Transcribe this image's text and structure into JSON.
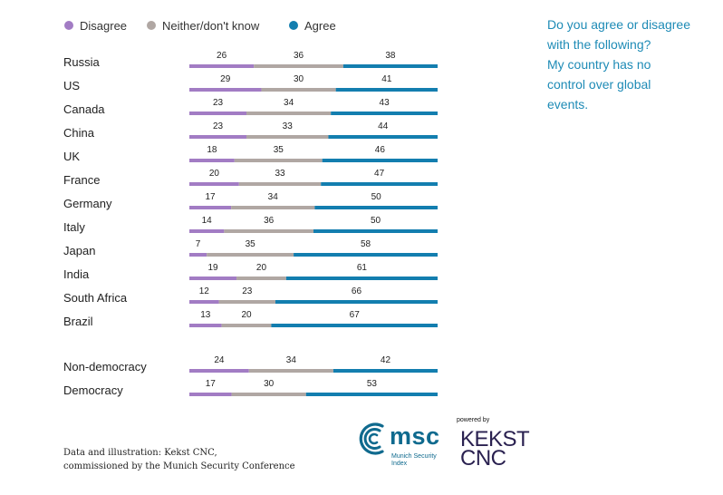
{
  "legend": [
    {
      "label": "Disagree",
      "color": "#A27CC4"
    },
    {
      "label": "Neither/don't know",
      "color": "#B0A7A3"
    },
    {
      "label": "Agree",
      "color": "#137EAF"
    }
  ],
  "question": [
    "Do you agree or disagree",
    "with the following?",
    "My country has no",
    "control over global",
    "events."
  ],
  "chart_data": {
    "type": "bar",
    "orientation": "horizontal",
    "stacked": true,
    "unit": "percent",
    "series_names": [
      "Disagree",
      "Neither/don't know",
      "Agree"
    ],
    "groups": [
      {
        "categories": [
          "Russia",
          "US",
          "Canada",
          "China",
          "UK",
          "France",
          "Germany",
          "Italy",
          "Japan",
          "India",
          "South Africa",
          "Brazil"
        ],
        "values": [
          [
            26,
            36,
            38
          ],
          [
            29,
            30,
            41
          ],
          [
            23,
            34,
            43
          ],
          [
            23,
            33,
            44
          ],
          [
            18,
            35,
            46
          ],
          [
            20,
            33,
            47
          ],
          [
            17,
            34,
            50
          ],
          [
            14,
            36,
            50
          ],
          [
            7,
            35,
            58
          ],
          [
            19,
            20,
            61
          ],
          [
            12,
            23,
            66
          ],
          [
            13,
            20,
            67
          ]
        ]
      },
      {
        "categories": [
          "Non-democracy",
          "Democracy"
        ],
        "values": [
          [
            24,
            34,
            42
          ],
          [
            17,
            30,
            53
          ]
        ]
      }
    ]
  },
  "credit": [
    "Data and illustration: Kekst CNC,",
    "commissioned by the Munich Security Conference"
  ],
  "logos": {
    "msc_word": "msc",
    "msc_sub": [
      "Munich Security",
      "Index"
    ],
    "powered_by": "powered by",
    "kekst_lines": [
      "KEKST",
      "CNC"
    ]
  }
}
